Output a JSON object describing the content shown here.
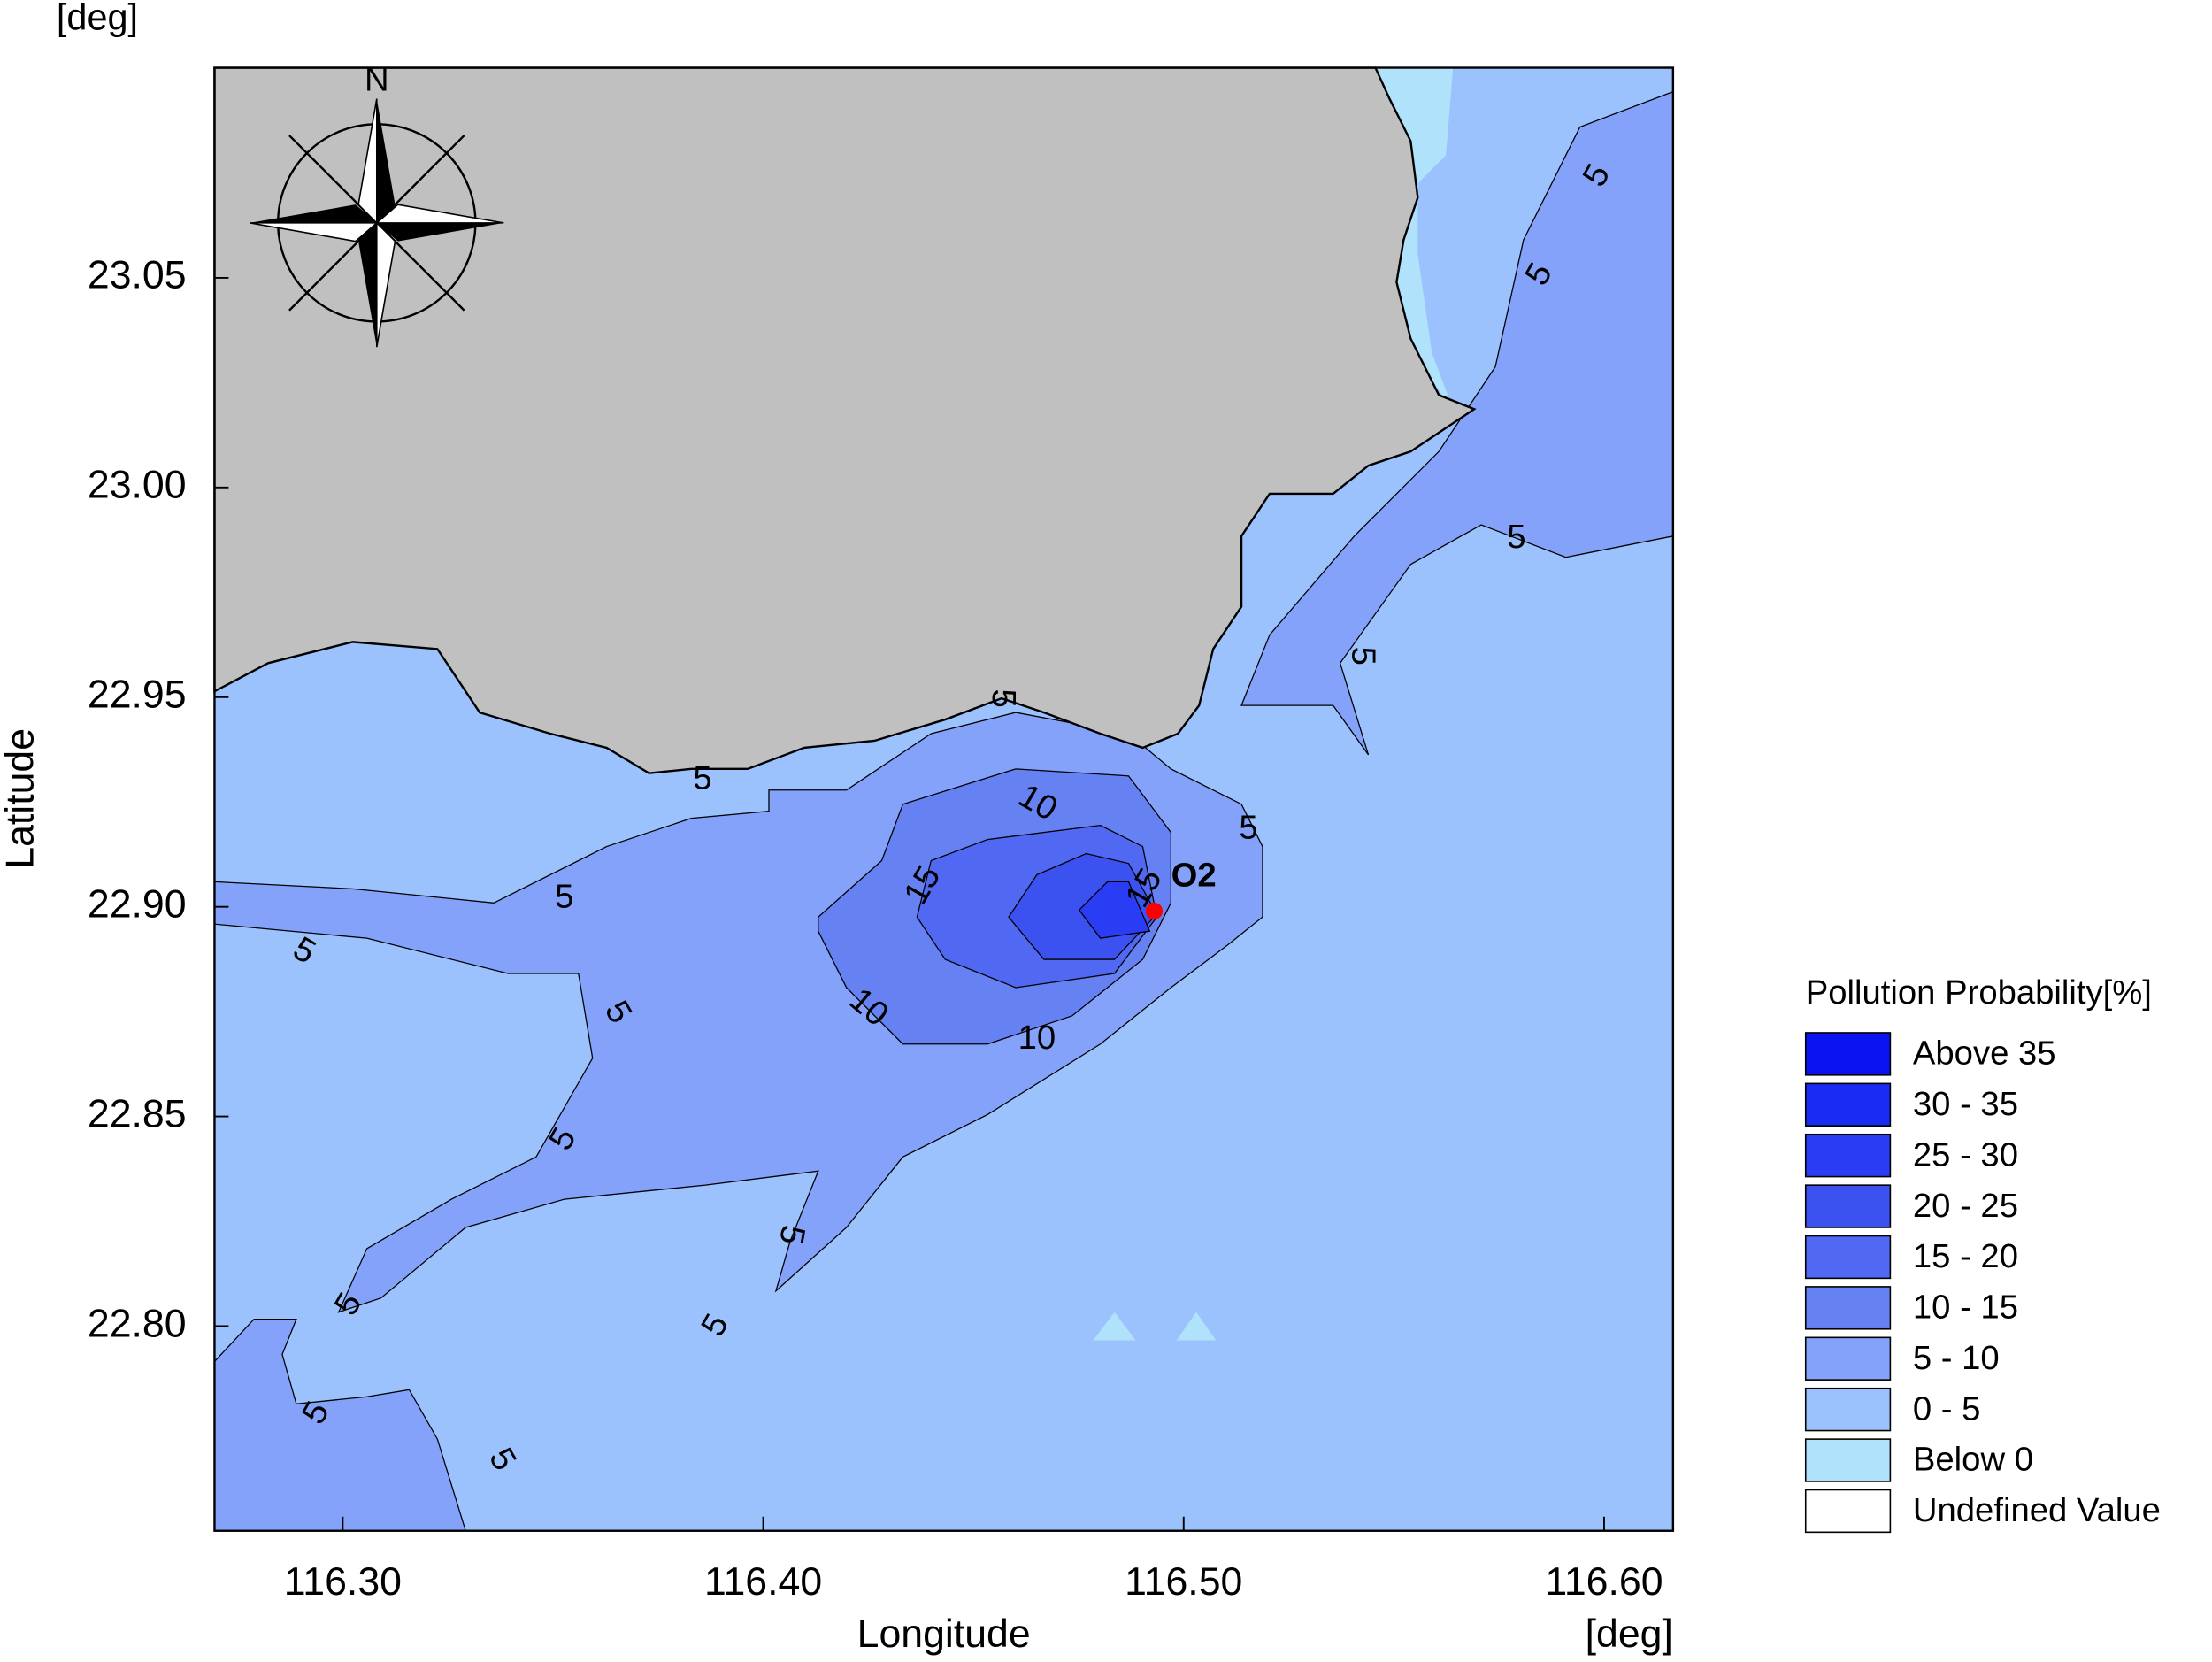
{
  "map": {
    "x_label": "Longitude",
    "y_label": "Latitude",
    "x_unit": "[deg]",
    "y_unit": "[deg]",
    "xlim": [
      116.2695,
      116.6164
    ],
    "ylim": [
      22.7512,
      23.1001
    ],
    "xticks": [
      {
        "value": 116.3,
        "label": "116.30"
      },
      {
        "value": 116.4,
        "label": "116.40"
      },
      {
        "value": 116.5,
        "label": "116.50"
      },
      {
        "value": 116.6,
        "label": "116.60"
      }
    ],
    "yticks": [
      {
        "value": 22.8,
        "label": "22.80"
      },
      {
        "value": 22.85,
        "label": "22.85"
      },
      {
        "value": 22.9,
        "label": "22.90"
      },
      {
        "value": 22.95,
        "label": "22.95"
      },
      {
        "value": 23.0,
        "label": "23.00"
      },
      {
        "value": 23.05,
        "label": "23.05"
      }
    ],
    "compass": "N",
    "station": {
      "name": "O2",
      "lon": 116.493,
      "lat": 22.899,
      "color": "#ff0000"
    },
    "contour_labels": [
      5,
      5,
      5,
      5,
      5,
      5,
      5,
      5,
      5,
      5,
      5,
      5,
      5,
      5,
      5,
      5,
      10,
      10,
      10,
      15,
      15
    ],
    "legend": {
      "title": "Pollution Probability[%]",
      "items": [
        {
          "label": "Above 35",
          "color": "#0a14f0"
        },
        {
          "label": "30 - 35",
          "color": "#1a2cf2"
        },
        {
          "label": "25 - 30",
          "color": "#2a3df4"
        },
        {
          "label": "20 - 25",
          "color": "#3c52f0"
        },
        {
          "label": "15 - 20",
          "color": "#5068f2"
        },
        {
          "label": "10 - 15",
          "color": "#6682f2"
        },
        {
          "label": "5 - 10",
          "color": "#84a2fa"
        },
        {
          "label": "0 - 5",
          "color": "#9cc2fd"
        },
        {
          "label": "Below 0",
          "color": "#b0e2fc"
        },
        {
          "label": "Undefined Value",
          "color": "#ffffff"
        }
      ]
    }
  }
}
